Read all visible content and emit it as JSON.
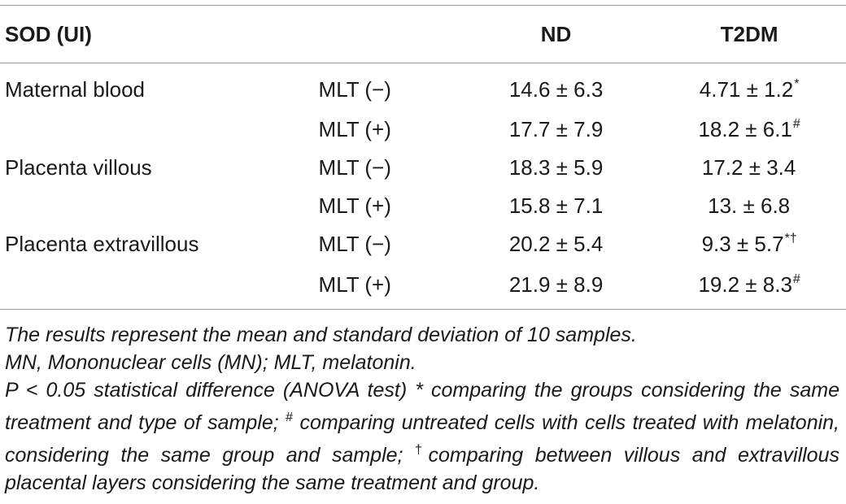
{
  "table": {
    "headers": {
      "sample": "SOD (UI)",
      "treatment": "",
      "nd": "ND",
      "t2dm": "T2DM"
    },
    "rows": [
      {
        "sample": "Maternal blood",
        "treatment": "MLT (−)",
        "nd": "14.6 ± 6.3",
        "t2dm": "4.71 ± 1.2",
        "t2dm_mark": "*"
      },
      {
        "sample": "",
        "treatment": "MLT (+)",
        "nd": "17.7 ± 7.9",
        "t2dm": "18.2 ± 6.1",
        "t2dm_mark": "#"
      },
      {
        "sample": "Placenta villous",
        "treatment": "MLT (−)",
        "nd": "18.3 ± 5.9",
        "t2dm": "17.2 ± 3.4",
        "t2dm_mark": ""
      },
      {
        "sample": "",
        "treatment": "MLT (+)",
        "nd": "15.8 ± 7.1",
        "t2dm": "13. ± 6.8",
        "t2dm_mark": ""
      },
      {
        "sample": "Placenta extravillous",
        "treatment": "MLT (−)",
        "nd": "20.2 ± 5.4",
        "t2dm": "9.3 ± 5.7",
        "t2dm_mark": "*†"
      },
      {
        "sample": "",
        "treatment": "MLT (+)",
        "nd": "21.9 ± 8.9",
        "t2dm": "19.2 ± 8.3",
        "t2dm_mark": "#"
      }
    ]
  },
  "footnotes": {
    "line1": "The results represent the mean and standard deviation of 10 samples.",
    "line2": "MN, Mononuclear cells (MN); MLT, melatonin.",
    "line3_a": "P < 0.05 statistical difference (ANOVA test) * comparing the groups considering the same treatment and type of sample; ",
    "line3_mark_hash": "#",
    "line3_b": " comparing untreated cells with cells treated with melatonin, considering the same group and sample; ",
    "line3_mark_dagger": "†",
    "line3_c": "comparing between villous and extravillous placental layers considering the same treatment and group."
  }
}
